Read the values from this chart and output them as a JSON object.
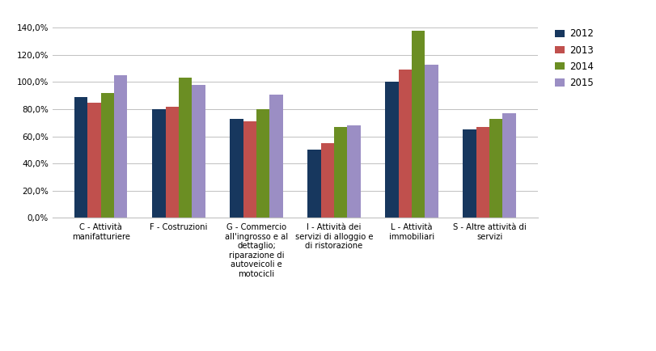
{
  "categories": [
    "C - Attività\nmanifatturiere",
    "F - Costruzioni",
    "G - Commercio\nall'ingrosso e al\ndettaglio;\nriparazione di\nautoveicoli e\nmotocicli",
    "I - Attività dei\nservizi di alloggio e\ndi ristorazione",
    "L - Attività\nimmobiliari",
    "S - Altre attività di\nservizi"
  ],
  "series": {
    "2012": [
      0.89,
      0.8,
      0.73,
      0.5,
      1.0,
      0.65
    ],
    "2013": [
      0.85,
      0.82,
      0.71,
      0.55,
      1.09,
      0.67
    ],
    "2014": [
      0.92,
      1.03,
      0.8,
      0.67,
      1.38,
      0.73
    ],
    "2015": [
      1.05,
      0.98,
      0.91,
      0.68,
      1.13,
      0.77
    ]
  },
  "series_order": [
    "2012",
    "2013",
    "2014",
    "2015"
  ],
  "colors": {
    "2012": "#17375E",
    "2013": "#C0504D",
    "2014": "#6B8E23",
    "2015": "#9B8EC4"
  },
  "ylim": [
    0,
    1.45
  ],
  "yticks": [
    0.0,
    0.2,
    0.4,
    0.6,
    0.8,
    1.0,
    1.2,
    1.4
  ],
  "ytick_labels": [
    "0,0%",
    "20,0%",
    "40,0%",
    "60,0%",
    "80,0%",
    "100,0%",
    "120,0%",
    "140,0%"
  ],
  "background_color": "#FFFFFF",
  "grid_color": "#C0C0C0",
  "bar_width": 0.17,
  "legend_labels": [
    "2012",
    "2013",
    "2014",
    "2015"
  ]
}
